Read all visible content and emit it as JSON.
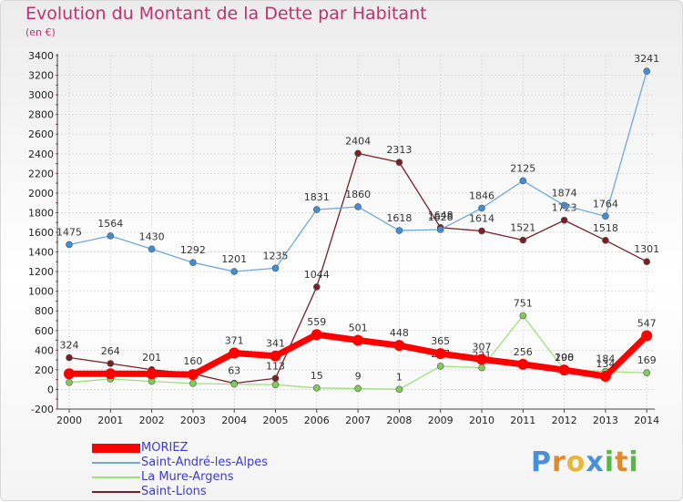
{
  "chart_data": {
    "type": "line",
    "title": "Evolution du Montant de la Dette par Habitant",
    "subtitle": "(en €)",
    "xlabel": "",
    "ylabel": "",
    "ylim": [
      -200,
      3400
    ],
    "y_ticks": [
      -200,
      0,
      200,
      400,
      600,
      800,
      1000,
      1200,
      1400,
      1600,
      1800,
      2000,
      2200,
      2400,
      2600,
      2800,
      3000,
      3200,
      3400
    ],
    "categories": [
      "2000",
      "2001",
      "2002",
      "2003",
      "2004",
      "2005",
      "2006",
      "2007",
      "2008",
      "2009",
      "2010",
      "2011",
      "2012",
      "2013",
      "2014"
    ],
    "grid": true,
    "legend_position": "bottom-left",
    "series": [
      {
        "name": "Saint-Lions",
        "color": "#7a1f28",
        "marker": "#7a1f28",
        "values": [
          324,
          264,
          201,
          160,
          63,
          113,
          1044,
          2404,
          2313,
          1648,
          1614,
          1521,
          1723,
          1518,
          1301
        ],
        "labels": [
          "324",
          "264",
          "201",
          "160",
          "63",
          "113",
          "1044",
          "2404",
          "2313",
          "1648",
          "1614",
          "1521",
          "1723",
          "1518",
          "1301"
        ],
        "label_dy": -10
      },
      {
        "name": "La Mure-Argens",
        "color": "#9ee07a",
        "marker": "#7fcd58",
        "values": [
          71,
          107,
          82,
          61,
          54,
          48,
          15,
          9,
          1,
          237,
          221,
          751,
          200,
          184,
          169
        ],
        "labels": [
          "",
          "",
          "",
          "",
          "",
          "",
          "15",
          "9",
          "1",
          "237",
          "221",
          "751",
          "200",
          "184",
          "169"
        ],
        "label_dy": -10
      },
      {
        "name": "Saint-André-les-Alpes",
        "color": "#6fa8dc",
        "marker": "#3f8fd8",
        "values": [
          1475,
          1564,
          1430,
          1292,
          1201,
          1235,
          1831,
          1860,
          1618,
          1628,
          1846,
          2125,
          1874,
          1764,
          3241
        ],
        "labels": [
          "1475",
          "1564",
          "1430",
          "1292",
          "1201",
          "1235",
          "1831",
          "1860",
          "1618",
          "1628",
          "1846",
          "2125",
          "1874",
          "1764",
          "3241"
        ],
        "label_dy": -10
      },
      {
        "name": "MORIEZ",
        "color": "#ff0000",
        "marker": "#ff0000",
        "values": [
          160,
          160,
          158,
          151,
          371,
          341,
          559,
          501,
          448,
          365,
          307,
          256,
          198,
          134,
          547
        ],
        "labels": [
          "",
          "",
          "",
          "",
          "371",
          "341",
          "559",
          "501",
          "448",
          "365",
          "307",
          "256",
          "198",
          "134",
          "547"
        ],
        "label_dy": -10
      }
    ]
  },
  "legend": [
    {
      "label": "MORIEZ",
      "color": "#ff0000"
    },
    {
      "label": "Saint-André-les-Alpes",
      "color": "#6fa8dc"
    },
    {
      "label": "La Mure-Argens",
      "color": "#9ee07a"
    },
    {
      "label": "Saint-Lions",
      "color": "#7a1f28"
    }
  ],
  "brand": {
    "text": "Proxiti",
    "letters": [
      {
        "ch": "P",
        "color": "#4a90d9"
      },
      {
        "ch": "r",
        "color": "#e08a2e"
      },
      {
        "ch": "o",
        "color": "#e8b63a"
      },
      {
        "ch": "x",
        "color": "#4a90d9"
      },
      {
        "ch": "i",
        "color": "#58b847"
      },
      {
        "ch": "t",
        "color": "#e08a2e"
      },
      {
        "ch": "i",
        "color": "#58b847"
      }
    ]
  }
}
